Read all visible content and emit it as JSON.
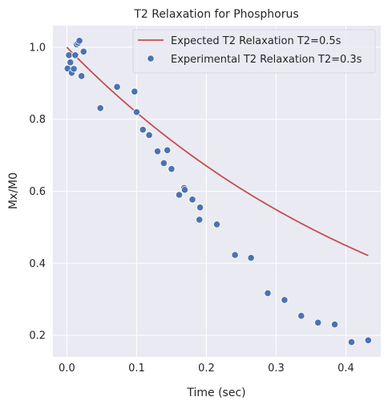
{
  "chart_data": {
    "type": "scatter",
    "title": "T2 Relaxation for Phosphorus",
    "xlabel": "Time (sec)",
    "ylabel": "Mx/M0",
    "xlim": [
      -0.02,
      0.45
    ],
    "ylim": [
      0.14,
      1.06
    ],
    "xticks": [
      0.0,
      0.1,
      0.2,
      0.3,
      0.4
    ],
    "xtick_labels": [
      "0.0",
      "0.1",
      "0.2",
      "0.3",
      "0.4"
    ],
    "yticks": [
      0.2,
      0.4,
      0.6,
      0.8,
      1.0
    ],
    "ytick_labels": [
      "0.2",
      "0.4",
      "0.6",
      "0.8",
      "1.0"
    ],
    "grid": true,
    "legend_position": "top-right",
    "colors": {
      "background": "#eaeaf2",
      "grid": "#ffffff",
      "expected": "#c44e52",
      "experimental": "#4c72b0"
    },
    "series": [
      {
        "name": "Expected T2 Relaxation T2=0.5s",
        "kind": "line",
        "T2": 0.5,
        "x_range": [
          0.0,
          0.432
        ]
      },
      {
        "name": "Experimental T2 Relaxation T2=0.3s",
        "kind": "scatter",
        "points": [
          [
            0.001,
            0.941
          ],
          [
            0.003,
            0.978
          ],
          [
            0.005,
            0.958
          ],
          [
            0.007,
            0.929
          ],
          [
            0.01,
            0.94
          ],
          [
            0.012,
            0.978
          ],
          [
            0.014,
            1.008
          ],
          [
            0.016,
            1.012
          ],
          [
            0.018,
            1.018
          ],
          [
            0.021,
            0.92
          ],
          [
            0.024,
            0.988
          ],
          [
            0.048,
            0.831
          ],
          [
            0.072,
            0.89
          ],
          [
            0.097,
            0.877
          ],
          [
            0.1,
            0.82
          ],
          [
            0.109,
            0.771
          ],
          [
            0.118,
            0.756
          ],
          [
            0.13,
            0.711
          ],
          [
            0.139,
            0.678
          ],
          [
            0.144,
            0.714
          ],
          [
            0.15,
            0.662
          ],
          [
            0.161,
            0.59
          ],
          [
            0.168,
            0.609
          ],
          [
            0.169,
            0.604
          ],
          [
            0.18,
            0.577
          ],
          [
            0.19,
            0.521
          ],
          [
            0.191,
            0.555
          ],
          [
            0.215,
            0.508
          ],
          [
            0.241,
            0.423
          ],
          [
            0.264,
            0.415
          ],
          [
            0.288,
            0.317
          ],
          [
            0.312,
            0.298
          ],
          [
            0.336,
            0.254
          ],
          [
            0.36,
            0.235
          ],
          [
            0.384,
            0.23
          ],
          [
            0.408,
            0.181
          ],
          [
            0.432,
            0.186
          ]
        ]
      }
    ]
  }
}
